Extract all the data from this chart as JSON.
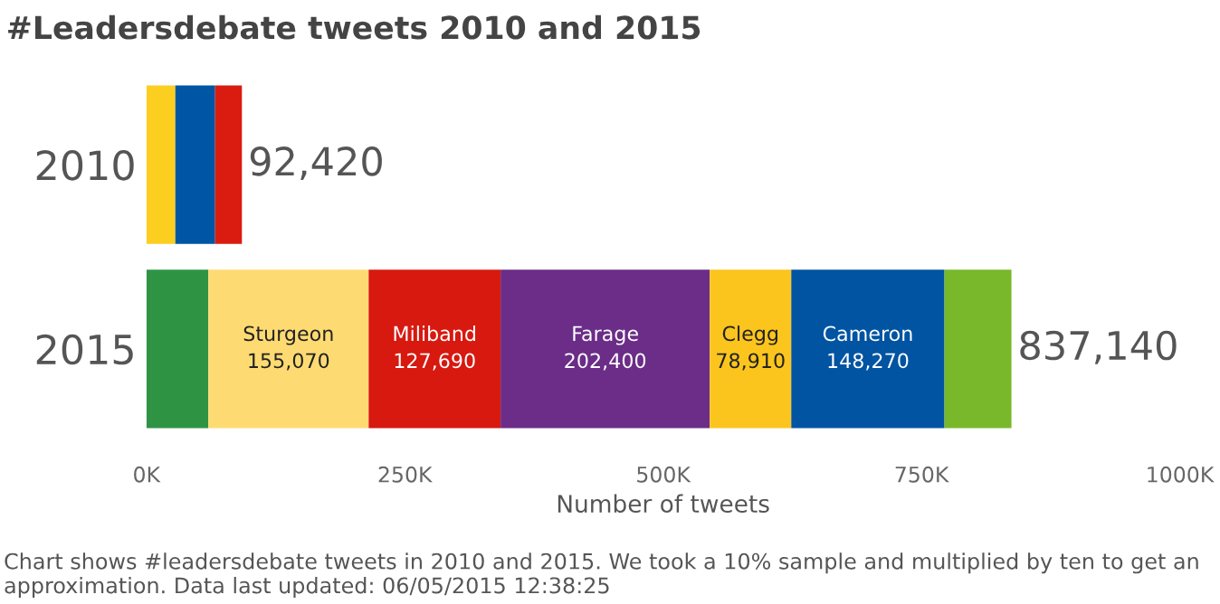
{
  "chart_data": {
    "type": "bar",
    "orientation": "horizontal",
    "stacked": true,
    "title": "#Leadersdebate tweets 2010 and 2015",
    "xlabel": "Number of tweets",
    "categories": [
      "2010",
      "2015"
    ],
    "series": [
      {
        "color": "#fcce1f",
        "values": [
          28000,
          null
        ]
      },
      {
        "color": "#0055a4",
        "values": [
          38500,
          null
        ]
      },
      {
        "color": "#da1c10",
        "values": [
          25920,
          null
        ]
      },
      {
        "color": "#2e9444",
        "values": [
          null,
          60000
        ]
      },
      {
        "name": "Sturgeon",
        "color": "#fedb72",
        "values": [
          null,
          155070
        ],
        "value_labels": [
          null,
          "155,070"
        ]
      },
      {
        "name": "Miliband",
        "color": "#d7190f",
        "values": [
          null,
          127690
        ],
        "value_labels": [
          null,
          "127,690"
        ]
      },
      {
        "name": "Farage",
        "color": "#6b2d87",
        "values": [
          null,
          202400
        ],
        "value_labels": [
          null,
          "202,400"
        ]
      },
      {
        "name": "Clegg",
        "color": "#fcc51d",
        "values": [
          null,
          78910
        ],
        "value_labels": [
          null,
          "78,910"
        ]
      },
      {
        "name": "Cameron",
        "color": "#0054a2",
        "values": [
          null,
          148270
        ],
        "value_labels": [
          null,
          "148,270"
        ]
      },
      {
        "color": "#78b82a",
        "values": [
          null,
          64800
        ]
      }
    ],
    "totals": [
      "92,420",
      "837,140"
    ],
    "xlim": [
      0,
      1000000
    ],
    "xticks": [
      {
        "value": 0,
        "label": "0K"
      },
      {
        "value": 250000,
        "label": "250K"
      },
      {
        "value": 500000,
        "label": "500K"
      },
      {
        "value": 750000,
        "label": "750K"
      },
      {
        "value": 1000000,
        "label": "1000K"
      }
    ],
    "legend": false,
    "annotations": [
      "Chart shows #leadersdebate tweets in 2010 and 2015. We took a 10% sample and multiplied by ten to get an approximation. Data last updated: 06/05/2015 12:38:25"
    ]
  }
}
